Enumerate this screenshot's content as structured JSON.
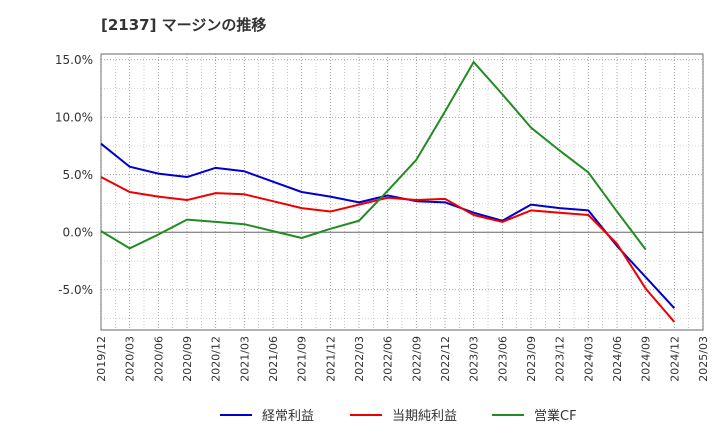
{
  "chart_data": {
    "type": "line",
    "title": "[2137]  マージンの推移",
    "x": [
      "2019/12",
      "2020/03",
      "2020/06",
      "2020/09",
      "2020/12",
      "2021/03",
      "2021/06",
      "2021/09",
      "2021/12",
      "2022/03",
      "2022/06",
      "2022/09",
      "2022/12",
      "2023/03",
      "2023/06",
      "2023/09",
      "2023/12",
      "2024/03",
      "2024/06",
      "2024/09",
      "2024/12",
      "2025/03"
    ],
    "y_ticks": [
      "15.0%",
      "10.0%",
      "5.0%",
      "0.0%",
      "-5.0%"
    ],
    "y_tick_values": [
      15,
      10,
      5,
      0,
      -5
    ],
    "ylim": [
      -8.5,
      15.5
    ],
    "grid": true,
    "legend_position": "bottom",
    "series": [
      {
        "name": "経常利益",
        "color": "#0000cc",
        "values": [
          7.7,
          5.7,
          5.1,
          4.8,
          5.6,
          5.3,
          4.4,
          3.5,
          3.1,
          2.6,
          3.2,
          2.7,
          2.6,
          1.7,
          1.0,
          2.4,
          2.1,
          1.9,
          -1.2,
          -3.9,
          -6.6,
          null
        ]
      },
      {
        "name": "当期純利益",
        "color": "#ee0000",
        "values": [
          4.8,
          3.5,
          3.1,
          2.8,
          3.4,
          3.3,
          2.7,
          2.1,
          1.8,
          2.4,
          3.0,
          2.8,
          2.9,
          1.5,
          0.9,
          1.9,
          1.7,
          1.5,
          -1.0,
          -4.9,
          -7.8,
          null
        ]
      },
      {
        "name": "営業CF",
        "color": "#228B22",
        "values": [
          0.1,
          -1.4,
          -0.2,
          1.1,
          0.9,
          0.7,
          0.1,
          -0.5,
          0.3,
          1.0,
          3.6,
          6.3,
          10.5,
          14.8,
          12.0,
          9.1,
          7.1,
          5.2,
          1.8,
          -1.5,
          null,
          null
        ]
      }
    ]
  }
}
